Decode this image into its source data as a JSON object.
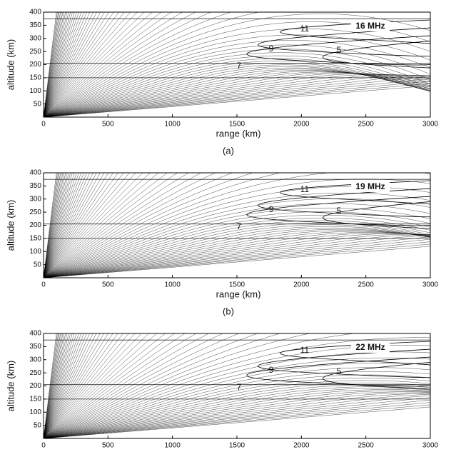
{
  "chart_data": [
    {
      "type": "ray-trace",
      "xlabel": "range (km)",
      "ylabel": "altitude (km)",
      "caption": "(a)",
      "frequency_label": "16 MHz",
      "contour_labels": [
        "11",
        "9",
        "7",
        "5"
      ],
      "xlim": [
        0,
        3000
      ],
      "ylim": [
        0,
        400
      ],
      "xticks": [
        0,
        500,
        1000,
        1500,
        2000,
        2500,
        3000
      ],
      "yticks": [
        50,
        100,
        150,
        200,
        250,
        300,
        350,
        400
      ]
    },
    {
      "type": "ray-trace",
      "xlabel": "range (km)",
      "ylabel": "altitude (km)",
      "caption": "(b)",
      "frequency_label": "19 MHz",
      "contour_labels": [
        "11",
        "9",
        "7",
        "5"
      ],
      "xlim": [
        0,
        3000
      ],
      "ylim": [
        0,
        400
      ],
      "xticks": [
        0,
        500,
        1000,
        1500,
        2000,
        2500,
        3000
      ],
      "yticks": [
        50,
        100,
        150,
        200,
        250,
        300,
        350,
        400
      ]
    },
    {
      "type": "ray-trace",
      "ylabel": "altitude (km)",
      "frequency_label": "22 MHz",
      "contour_labels": [
        "11",
        "9",
        "7",
        "5"
      ],
      "xlim": [
        0,
        3000
      ],
      "ylim": [
        0,
        400
      ],
      "xticks": [
        0,
        500,
        1000,
        1500,
        2000,
        2500,
        3000
      ],
      "yticks": [
        50,
        100,
        150,
        200,
        250,
        300,
        350,
        400
      ]
    }
  ]
}
